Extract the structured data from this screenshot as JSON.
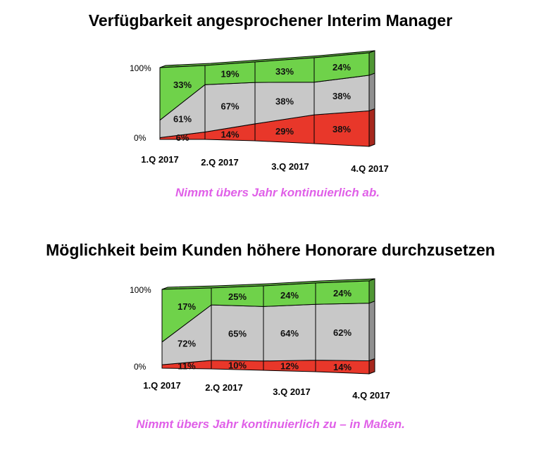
{
  "chart_data": [
    {
      "type": "bar",
      "title": "Verfügbarkeit angesprochener Interim Manager",
      "caption": "Nimmt übers Jahr kontinuierlich ab.",
      "categories": [
        "1.Q 2017",
        "2.Q 2017",
        "3.Q 2017",
        "4.Q 2017"
      ],
      "axis_labels": [
        "100%",
        "0%"
      ],
      "series": [
        {
          "values": [
            6,
            14,
            29,
            38
          ],
          "labels": [
            "6%",
            "14%",
            "29%",
            "38%"
          ],
          "color": "#e8372a"
        },
        {
          "values": [
            61,
            67,
            38,
            38
          ],
          "labels": [
            "61%",
            "67%",
            "38%",
            "38%"
          ],
          "color": "#c8c8c8"
        },
        {
          "values": [
            33,
            19,
            33,
            24
          ],
          "labels": [
            "33%",
            "19%",
            "33%",
            "24%"
          ],
          "color": "#6fd24a"
        }
      ],
      "ylim": [
        0,
        100
      ]
    },
    {
      "type": "bar",
      "title": "Möglichkeit beim Kunden höhere Honorare durchzusetzen",
      "caption": "Nimmt übers Jahr kontinuierlich zu – in Maßen.",
      "categories": [
        "1.Q 2017",
        "2.Q 2017",
        "3.Q 2017",
        "4.Q 2017"
      ],
      "axis_labels": [
        "100%",
        "0%"
      ],
      "series": [
        {
          "values": [
            11,
            10,
            12,
            14
          ],
          "labels": [
            "11%",
            "10%",
            "12%",
            "14%"
          ],
          "color": "#e8372a"
        },
        {
          "values": [
            72,
            65,
            64,
            62
          ],
          "labels": [
            "72%",
            "65%",
            "64%",
            "62%"
          ],
          "color": "#c8c8c8"
        },
        {
          "values": [
            17,
            25,
            24,
            24
          ],
          "labels": [
            "17%",
            "25%",
            "24%",
            "24%"
          ],
          "color": "#6fd24a"
        }
      ],
      "ylim": [
        0,
        100
      ]
    }
  ]
}
